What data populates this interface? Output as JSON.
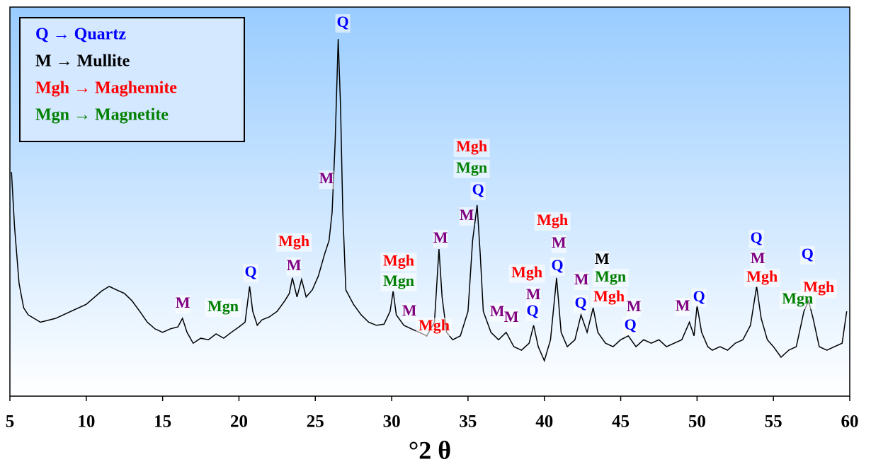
{
  "chart_data": {
    "type": "line",
    "x_label": "°2 θ",
    "xlim": [
      5,
      60
    ],
    "xticks": [
      5,
      10,
      15,
      20,
      25,
      30,
      35,
      40,
      45,
      50,
      55,
      60
    ],
    "ylim": [
      0,
      100
    ],
    "color": "#000000",
    "x": [
      5.1,
      5.3,
      5.6,
      5.9,
      6.2,
      7,
      8,
      9,
      10,
      11,
      11.5,
      12,
      12.5,
      13,
      13.5,
      14,
      14.5,
      15,
      15.5,
      16,
      16.3,
      16.6,
      17,
      17.5,
      18,
      18.5,
      19,
      19.5,
      20,
      20.4,
      20.7,
      20.9,
      21.2,
      21.5,
      22,
      22.5,
      23,
      23.3,
      23.5,
      23.8,
      24.1,
      24.4,
      24.8,
      25.2,
      25.6,
      25.9,
      26.1,
      26.3,
      26.5,
      26.65,
      26.8,
      27,
      27.5,
      28,
      28.5,
      29,
      29.5,
      29.9,
      30.1,
      30.3,
      30.8,
      31.3,
      31.8,
      32.3,
      32.8,
      33.1,
      33.3,
      33.6,
      34,
      34.5,
      35,
      35.3,
      35.6,
      35.8,
      36,
      36.5,
      37,
      37.5,
      38,
      38.5,
      39,
      39.3,
      39.6,
      40,
      40.4,
      40.8,
      41.1,
      41.5,
      42,
      42.4,
      42.8,
      43.2,
      43.5,
      44,
      44.5,
      45,
      45.5,
      46,
      46.5,
      47,
      47.5,
      48,
      48.5,
      49,
      49.5,
      49.8,
      50,
      50.3,
      50.7,
      51,
      51.5,
      52,
      52.5,
      53,
      53.5,
      53.9,
      54.2,
      54.6,
      55,
      55.5,
      56,
      56.5,
      57,
      57.3,
      57.6,
      58,
      58.5,
      59,
      59.5,
      59.8
    ],
    "values": [
      57.6,
      43.6,
      29,
      22.7,
      20.9,
      19,
      20,
      21.8,
      23.6,
      27,
      28.2,
      27.3,
      26.4,
      24.5,
      21.8,
      19,
      17.3,
      16.4,
      17.3,
      17.8,
      20,
      16.4,
      13.6,
      14.9,
      14.5,
      16,
      14.9,
      16.4,
      17.8,
      19,
      28.2,
      21.8,
      18.2,
      19.6,
      20.4,
      21.8,
      24.5,
      26.4,
      30.4,
      25.5,
      30,
      25.5,
      27.3,
      30.9,
      36.4,
      40,
      47.3,
      65.5,
      91.8,
      74.5,
      47.3,
      27.3,
      23.6,
      20.9,
      19,
      18.2,
      18.5,
      21.8,
      27,
      20.9,
      18.2,
      17.3,
      16.4,
      15.5,
      19,
      37.8,
      25.5,
      16.4,
      14.5,
      15.5,
      21.8,
      40,
      49.1,
      36.4,
      21.8,
      16.4,
      14.5,
      16.4,
      12.7,
      11.8,
      13.6,
      18.2,
      12.7,
      9.1,
      14.5,
      30.4,
      16.4,
      12.7,
      14.5,
      20.9,
      16.4,
      22.7,
      16.4,
      13.6,
      12.7,
      14.5,
      15.5,
      12.7,
      14.5,
      13.6,
      14.5,
      12.7,
      13.6,
      14.5,
      19,
      15.5,
      23.3,
      16.4,
      12.7,
      11.8,
      12.7,
      11.8,
      13.6,
      14.5,
      18.2,
      28.2,
      20,
      14.5,
      12.7,
      10,
      11.8,
      12.7,
      21.8,
      24.5,
      20,
      12.7,
      11.8,
      12.7,
      13.6,
      21.8
    ],
    "legend": [
      {
        "text": "Q → Quartz",
        "color": "#0000ff"
      },
      {
        "text": "M → Mullite",
        "color": "#000000"
      },
      {
        "text": "Mgh → Maghemite",
        "color": "#ff0000"
      },
      {
        "text": "Mgn → Magnetite",
        "color": "#008000"
      }
    ],
    "annotations": [
      {
        "text": "Q",
        "color": "#0000ff",
        "x": 26.8,
        "y": 95.8
      },
      {
        "text": "M",
        "color": "#800080",
        "x": 25.73,
        "y": 55.6
      },
      {
        "text": "Mgh",
        "color": "#ff0000",
        "x": 23.6,
        "y": 39.5
      },
      {
        "text": "M",
        "color": "#800080",
        "x": 23.6,
        "y": 33.3
      },
      {
        "text": "Q",
        "color": "#0000ff",
        "x": 20.77,
        "y": 31.6
      },
      {
        "text": "Mgn",
        "color": "#008000",
        "x": 18.96,
        "y": 22.7
      },
      {
        "text": "M",
        "color": "#800080",
        "x": 16.32,
        "y": 23.6
      },
      {
        "text": "Mgh",
        "color": "#ff0000",
        "x": 35.24,
        "y": 63.8
      },
      {
        "text": "Mgn",
        "color": "#008000",
        "x": 35.24,
        "y": 58.4
      },
      {
        "text": "Q",
        "color": "#0000ff",
        "x": 35.66,
        "y": 52.7
      },
      {
        "text": "M",
        "color": "#800080",
        "x": 34.92,
        "y": 46.2
      },
      {
        "text": "M",
        "color": "#800080",
        "x": 33.2,
        "y": 40.4
      },
      {
        "text": "Mgh",
        "color": "#ff0000",
        "x": 30.46,
        "y": 34.5
      },
      {
        "text": "Mgn",
        "color": "#008000",
        "x": 30.46,
        "y": 29.3
      },
      {
        "text": "M",
        "color": "#800080",
        "x": 31.16,
        "y": 21.6
      },
      {
        "text": "Mgh",
        "color": "#ff0000",
        "x": 32.78,
        "y": 17.8
      },
      {
        "text": "M",
        "color": "#800080",
        "x": 36.91,
        "y": 21.5
      },
      {
        "text": "M",
        "color": "#800080",
        "x": 37.84,
        "y": 20
      },
      {
        "text": "Mgh",
        "color": "#ff0000",
        "x": 40.53,
        "y": 44.9
      },
      {
        "text": "M",
        "color": "#800080",
        "x": 40.95,
        "y": 39.1
      },
      {
        "text": "Q",
        "color": "#0000ff",
        "x": 40.85,
        "y": 33.3
      },
      {
        "text": "Mgh",
        "color": "#ff0000",
        "x": 38.86,
        "y": 31.5
      },
      {
        "text": "M",
        "color": "#800080",
        "x": 39.28,
        "y": 25.8
      },
      {
        "text": "Q",
        "color": "#0000ff",
        "x": 39.23,
        "y": 21.6
      },
      {
        "text": "M",
        "color": "#800080",
        "x": 42.43,
        "y": 29.6
      },
      {
        "text": "Q",
        "color": "#0000ff",
        "x": 42.38,
        "y": 23.6
      },
      {
        "text": "M",
        "color": "#000000",
        "x": 43.78,
        "y": 34.9
      },
      {
        "text": "Mgn",
        "color": "#008000",
        "x": 44.33,
        "y": 30.4
      },
      {
        "text": "Mgh",
        "color": "#ff0000",
        "x": 44.24,
        "y": 25.3
      },
      {
        "text": "M",
        "color": "#800080",
        "x": 45.86,
        "y": 22.7
      },
      {
        "text": "Q",
        "color": "#0000ff",
        "x": 45.63,
        "y": 18
      },
      {
        "text": "M",
        "color": "#800080",
        "x": 49.06,
        "y": 22.9
      },
      {
        "text": "Q",
        "color": "#0000ff",
        "x": 50.13,
        "y": 25.3
      },
      {
        "text": "Q",
        "color": "#0000ff",
        "x": 53.89,
        "y": 40.4
      },
      {
        "text": "M",
        "color": "#800080",
        "x": 53.98,
        "y": 35.1
      },
      {
        "text": "Mgh",
        "color": "#ff0000",
        "x": 54.26,
        "y": 30.4
      },
      {
        "text": "Q",
        "color": "#0000ff",
        "x": 57.23,
        "y": 36.2
      },
      {
        "text": "Mgh",
        "color": "#ff0000",
        "x": 57.97,
        "y": 27.6
      },
      {
        "text": "Mgn",
        "color": "#008000",
        "x": 56.58,
        "y": 24.7
      }
    ]
  }
}
